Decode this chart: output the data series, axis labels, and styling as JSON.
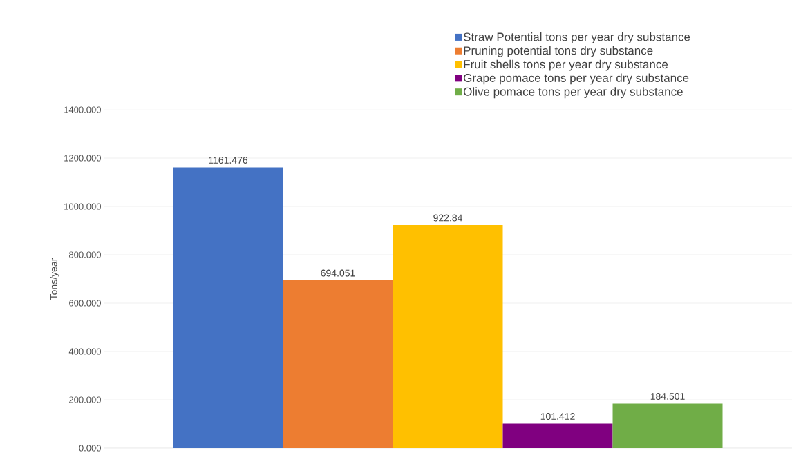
{
  "chart_data": {
    "type": "bar",
    "ylabel": "Tons/year",
    "categories": [
      null
    ],
    "series": [
      {
        "name": "Straw Potential tons per year dry substance",
        "color": "#4472c4",
        "values": [
          1161.476
        ],
        "value_labels": [
          "1161.476"
        ]
      },
      {
        "name": "Pruning potential tons dry substance",
        "color": "#ed7d31",
        "values": [
          694.051
        ],
        "value_labels": [
          "694.051"
        ]
      },
      {
        "name": "Fruit shells tons per year dry substance",
        "color": "#ffc000",
        "values": [
          922.84
        ],
        "value_labels": [
          "922.84"
        ]
      },
      {
        "name": "Grape pomace tons per year dry substance",
        "color": "#800080",
        "values": [
          101.412
        ],
        "value_labels": [
          "101.412"
        ]
      },
      {
        "name": "Olive pomace tons per year dry substance",
        "color": "#70ad47",
        "values": [
          184.501
        ],
        "value_labels": [
          "184.501"
        ]
      }
    ],
    "ylim": [
      0,
      1400
    ],
    "yticks": [
      {
        "value": 0,
        "label": "0.000"
      },
      {
        "value": 200,
        "label": "200.000"
      },
      {
        "value": 400,
        "label": "400.000"
      },
      {
        "value": 600,
        "label": "600.000"
      },
      {
        "value": 800,
        "label": "800.000"
      },
      {
        "value": 1000,
        "label": "1000.000"
      },
      {
        "value": 1200,
        "label": "1200.000"
      },
      {
        "value": 1400,
        "label": "1400.000"
      }
    ],
    "grid": "y",
    "legend": "top right"
  }
}
